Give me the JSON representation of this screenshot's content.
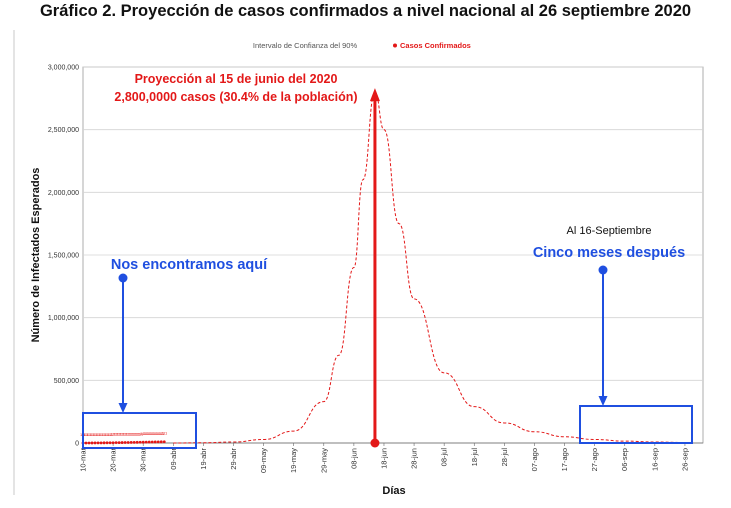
{
  "chart_data": {
    "type": "line",
    "title": "Gráfico 2. Proyección de casos confirmados a nivel nacional al 26 septiembre 2020",
    "xlabel": "Días",
    "ylabel": "Número de Infectados Esperados",
    "ylim": [
      0,
      3000000
    ],
    "yticks": [
      "0",
      "500,000",
      "1,000,000",
      "1,500,000",
      "2,000,000",
      "2,500,000",
      "3,000,000"
    ],
    "x_tick_labels": [
      "10-mar",
      "20-mar",
      "30-mar",
      "09-abr",
      "19-abr",
      "29-abr",
      "09-may",
      "19-may",
      "29-may",
      "08-jun",
      "18-jun",
      "28-jun",
      "08-jul",
      "18-jul",
      "28-jul",
      "07-ago",
      "17-ago",
      "27-ago",
      "06-sep",
      "16-sep",
      "26-sep"
    ],
    "legend": {
      "placement": "top",
      "entries": [
        {
          "label": "Intervalo de Confianza del 90%",
          "color": "#555555"
        },
        {
          "label": "Casos Confirmados",
          "color": "#e31818"
        }
      ]
    },
    "series": [
      {
        "name": "Intervalo de Confianza del 90%",
        "style": "dashed",
        "color": "#e31818",
        "peak_day": "15-jun",
        "peak_value": 2800000,
        "points": [
          [
            "09-abr",
            0
          ],
          [
            "19-abr",
            2000
          ],
          [
            "29-abr",
            8000
          ],
          [
            "09-may",
            28000
          ],
          [
            "19-may",
            95000
          ],
          [
            "29-may",
            330000
          ],
          [
            "03-jun",
            700000
          ],
          [
            "08-jun",
            1400000
          ],
          [
            "11-jun",
            2100000
          ],
          [
            "15-jun",
            2800000
          ],
          [
            "18-jun",
            2500000
          ],
          [
            "23-jun",
            1750000
          ],
          [
            "28-jun",
            1150000
          ],
          [
            "08-jul",
            560000
          ],
          [
            "18-jul",
            290000
          ],
          [
            "28-jul",
            160000
          ],
          [
            "07-ago",
            90000
          ],
          [
            "17-ago",
            50000
          ],
          [
            "27-ago",
            28000
          ],
          [
            "06-sep",
            15000
          ],
          [
            "16-sep",
            8000
          ],
          [
            "26-sep",
            4000
          ]
        ]
      },
      {
        "name": "Casos Confirmados",
        "style": "markers",
        "color": "#e31818",
        "start": "10-mar",
        "end": "06-abr",
        "approx_max": 10000
      }
    ],
    "annotations": [
      {
        "text": [
          "Proyección al 15 de junio del 2020",
          "2,800,0000 casos (30.4% de la población)"
        ],
        "color": "#e31818",
        "day": "15-jun",
        "value": 2800000
      },
      {
        "text": "Nos encontramos aquí",
        "color": "#1f4fe0"
      },
      {
        "text": "Al 16-Septiembre",
        "color": "#111111"
      },
      {
        "text": "Cinco meses después",
        "color": "#1f4fe0"
      }
    ]
  }
}
